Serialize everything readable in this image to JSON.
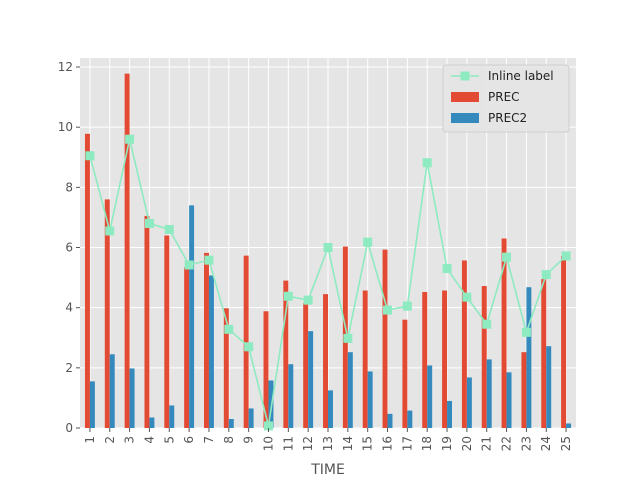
{
  "chart_data": {
    "type": "bar",
    "title": "",
    "xlabel": "TIME",
    "ylabel": "",
    "ylim": [
      0,
      12.3
    ],
    "yticks": [
      0,
      2,
      4,
      6,
      8,
      10,
      12
    ],
    "grid": true,
    "legend_position": "top-right",
    "categories": [
      "1",
      "2",
      "3",
      "4",
      "5",
      "6",
      "7",
      "8",
      "9",
      "10",
      "11",
      "12",
      "13",
      "14",
      "15",
      "16",
      "17",
      "18",
      "19",
      "20",
      "21",
      "22",
      "23",
      "24",
      "25"
    ],
    "series": [
      {
        "name": "PREC",
        "kind": "bar",
        "color": "#E24A33",
        "values": [
          9.78,
          7.6,
          11.78,
          7.05,
          6.4,
          5.35,
          5.82,
          3.98,
          5.73,
          3.88,
          4.9,
          4.15,
          4.45,
          6.03,
          4.57,
          5.93,
          3.6,
          4.52,
          4.57,
          5.57,
          4.72,
          6.3,
          2.52,
          4.95,
          5.72
        ]
      },
      {
        "name": "PREC2",
        "kind": "bar",
        "color": "#348ABD",
        "values": [
          1.55,
          2.45,
          1.98,
          0.35,
          0.75,
          7.4,
          5.07,
          0.3,
          0.65,
          1.58,
          2.12,
          3.22,
          1.25,
          2.52,
          1.88,
          0.47,
          0.58,
          2.08,
          0.9,
          1.68,
          2.28,
          1.85,
          4.68,
          2.72,
          0.15
        ]
      },
      {
        "name": "Inline label",
        "kind": "line",
        "color": "#8EEBC1",
        "values": [
          9.05,
          6.55,
          9.6,
          6.8,
          6.6,
          5.42,
          5.58,
          3.28,
          2.7,
          0.07,
          4.38,
          4.25,
          6.0,
          2.98,
          6.18,
          3.92,
          4.05,
          8.82,
          5.3,
          4.35,
          3.45,
          5.68,
          3.18,
          5.1,
          5.72
        ]
      }
    ],
    "legend": [
      "Inline label",
      "PREC",
      "PREC2"
    ]
  }
}
